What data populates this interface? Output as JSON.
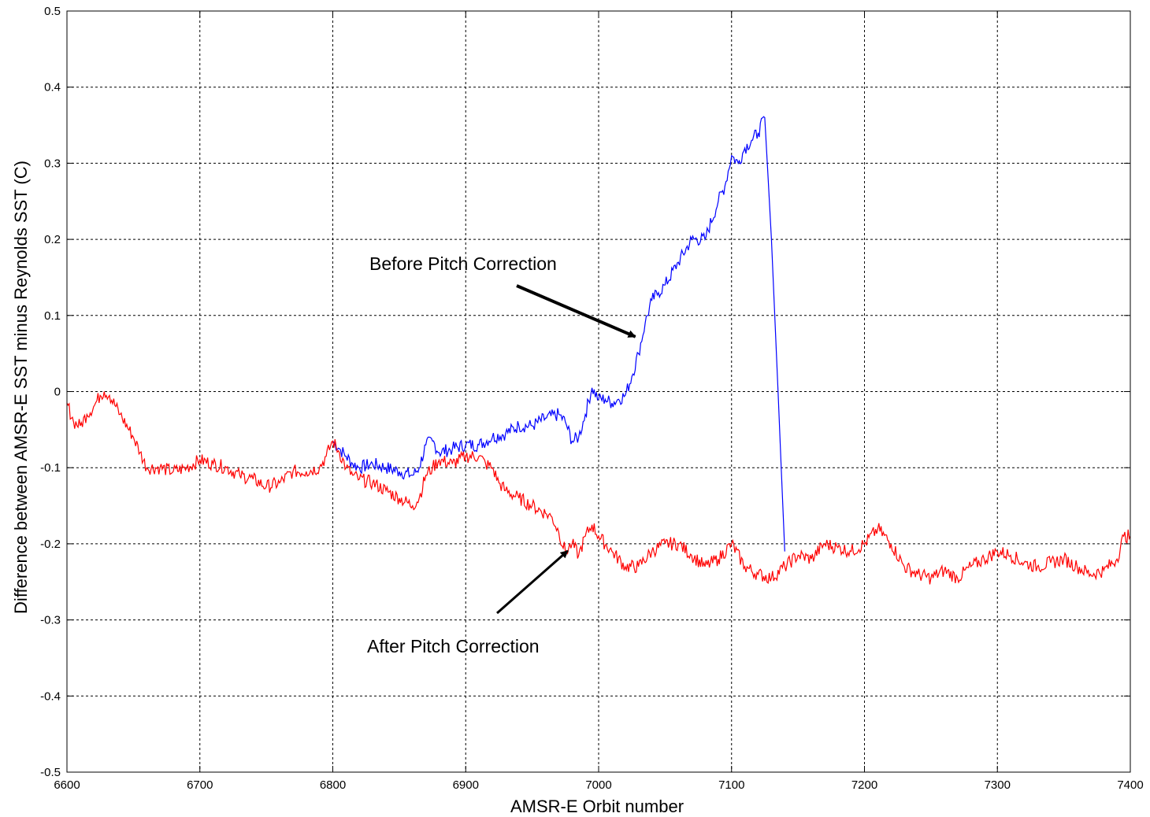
{
  "chart_data": {
    "type": "line",
    "title": "",
    "xlabel": "AMSR-E Orbit number",
    "ylabel": "Difference between AMSR-E SST minus Reynolds SST (C)",
    "xlim": [
      6600,
      7400
    ],
    "ylim": [
      -0.5,
      0.5
    ],
    "xticks": [
      "6600",
      "6700",
      "6800",
      "6900",
      "7000",
      "7100",
      "7200",
      "7300",
      "7400"
    ],
    "yticks": [
      "-0.5",
      "-0.4",
      "-0.3",
      "-0.2",
      "-0.1",
      "0",
      "0.1",
      "0.2",
      "0.3",
      "0.4",
      "0.5"
    ],
    "grid": true,
    "legend": "none",
    "series": [
      {
        "name": "Before Pitch Correction",
        "color": "#0000ff",
        "x": [
          6800,
          6805,
          6810,
          6815,
          6820,
          6830,
          6840,
          6850,
          6860,
          6865,
          6870,
          6875,
          6880,
          6890,
          6900,
          6910,
          6920,
          6930,
          6940,
          6950,
          6960,
          6970,
          6975,
          6980,
          6985,
          6990,
          6995,
          7000,
          7005,
          7010,
          7015,
          7020,
          7025,
          7030,
          7035,
          7040,
          7045,
          7050,
          7060,
          7070,
          7080,
          7090,
          7095,
          7100,
          7105,
          7110,
          7115,
          7120,
          7125,
          7130,
          7135,
          7140
        ],
        "y": [
          -0.065,
          -0.075,
          -0.085,
          -0.095,
          -0.1,
          -0.095,
          -0.1,
          -0.105,
          -0.11,
          -0.1,
          -0.07,
          -0.065,
          -0.08,
          -0.075,
          -0.07,
          -0.07,
          -0.06,
          -0.055,
          -0.045,
          -0.045,
          -0.035,
          -0.03,
          -0.04,
          -0.065,
          -0.06,
          -0.03,
          0.005,
          -0.01,
          -0.01,
          -0.015,
          -0.01,
          -0.005,
          0.02,
          0.05,
          0.09,
          0.12,
          0.13,
          0.14,
          0.17,
          0.2,
          0.2,
          0.25,
          0.27,
          0.31,
          0.3,
          0.32,
          0.33,
          0.34,
          0.36,
          0.2,
          0.0,
          -0.21
        ]
      },
      {
        "name": "After Pitch Correction",
        "color": "#ff0000",
        "x": [
          6600,
          6605,
          6610,
          6615,
          6620,
          6625,
          6628,
          6632,
          6640,
          6650,
          6655,
          6660,
          6670,
          6680,
          6690,
          6700,
          6710,
          6720,
          6730,
          6740,
          6750,
          6760,
          6770,
          6780,
          6790,
          6795,
          6800,
          6805,
          6810,
          6815,
          6820,
          6830,
          6840,
          6850,
          6860,
          6865,
          6870,
          6875,
          6880,
          6890,
          6900,
          6910,
          6915,
          6920,
          6925,
          6930,
          6940,
          6950,
          6960,
          6965,
          6970,
          6975,
          6980,
          6985,
          6990,
          6995,
          7000,
          7010,
          7020,
          7030,
          7040,
          7050,
          7060,
          7070,
          7080,
          7090,
          7100,
          7110,
          7120,
          7130,
          7140,
          7150,
          7160,
          7170,
          7180,
          7190,
          7200,
          7210,
          7220,
          7230,
          7240,
          7250,
          7260,
          7270,
          7280,
          7290,
          7300,
          7310,
          7320,
          7330,
          7340,
          7350,
          7360,
          7370,
          7380,
          7390,
          7395,
          7400
        ],
        "y": [
          -0.015,
          -0.04,
          -0.045,
          -0.03,
          -0.02,
          -0.005,
          0.0,
          -0.005,
          -0.03,
          -0.06,
          -0.08,
          -0.1,
          -0.1,
          -0.105,
          -0.1,
          -0.09,
          -0.095,
          -0.1,
          -0.11,
          -0.115,
          -0.125,
          -0.12,
          -0.105,
          -0.105,
          -0.1,
          -0.085,
          -0.065,
          -0.08,
          -0.1,
          -0.11,
          -0.115,
          -0.12,
          -0.13,
          -0.14,
          -0.15,
          -0.14,
          -0.11,
          -0.1,
          -0.09,
          -0.095,
          -0.085,
          -0.085,
          -0.095,
          -0.1,
          -0.12,
          -0.13,
          -0.14,
          -0.15,
          -0.16,
          -0.165,
          -0.185,
          -0.21,
          -0.2,
          -0.215,
          -0.19,
          -0.175,
          -0.19,
          -0.21,
          -0.23,
          -0.23,
          -0.21,
          -0.2,
          -0.2,
          -0.215,
          -0.23,
          -0.22,
          -0.2,
          -0.23,
          -0.24,
          -0.245,
          -0.23,
          -0.215,
          -0.22,
          -0.2,
          -0.205,
          -0.21,
          -0.2,
          -0.18,
          -0.2,
          -0.23,
          -0.24,
          -0.245,
          -0.235,
          -0.245,
          -0.23,
          -0.22,
          -0.21,
          -0.215,
          -0.225,
          -0.23,
          -0.225,
          -0.22,
          -0.23,
          -0.24,
          -0.235,
          -0.22,
          -0.19,
          -0.19
        ]
      }
    ],
    "annotations": [
      {
        "text": "Before Pitch Correction",
        "target_x": 7030,
        "target_y": 0.07
      },
      {
        "text": "After Pitch Correction",
        "target_x": 6978,
        "target_y": -0.205
      }
    ]
  }
}
